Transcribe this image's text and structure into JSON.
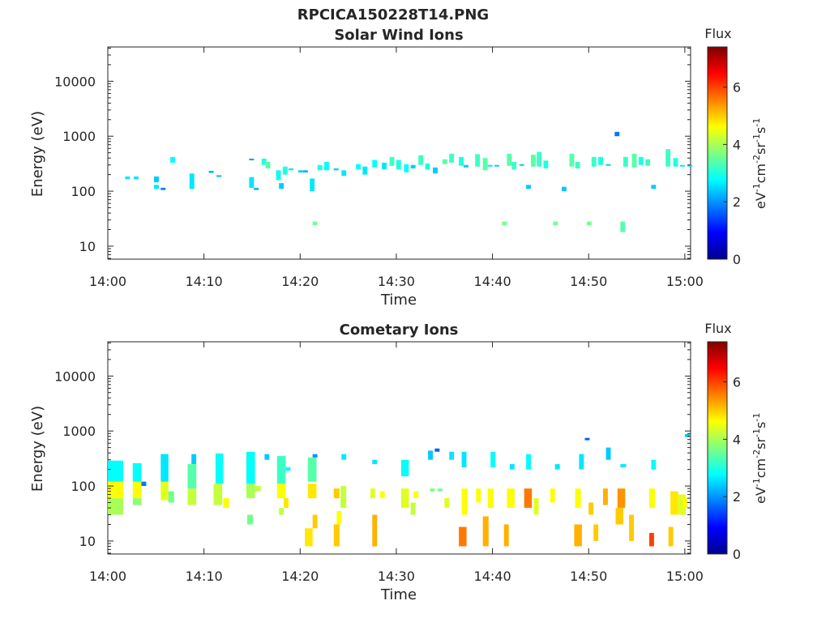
{
  "figure": {
    "title_line1": "RPCICA150228T14.PNG"
  },
  "colorbar_common": {
    "label": "Flux",
    "unit_parts": {
      "base1": "eV",
      "exp1": "-1",
      "base2": "cm",
      "exp2": "-2",
      "base3": "sr",
      "exp3": "-1",
      "base4": "s",
      "exp4": "-1"
    },
    "ticks": [
      "0",
      "2",
      "4",
      "6"
    ],
    "range": [
      0,
      7.4
    ],
    "colormap": "jet"
  },
  "chart_data": [
    {
      "type": "heatmap",
      "title": "Solar Wind Ions",
      "xlabel": "Time",
      "ylabel": "Energy (eV)",
      "x_ticks": [
        "14:00",
        "14:10",
        "14:20",
        "14:30",
        "14:40",
        "14:50",
        "15:00"
      ],
      "y_ticks": [
        "10",
        "100",
        "1000",
        "10000"
      ],
      "y_scale": "log",
      "ylim": [
        5.8,
        42000
      ],
      "x_range_minutes": [
        0,
        60.6
      ],
      "cells": [
        [
          1.8,
          0.5,
          165,
          185,
          2.6
        ],
        [
          2.7,
          0.5,
          165,
          185,
          2.6
        ],
        [
          4.8,
          0.5,
          145,
          185,
          2.4
        ],
        [
          4.8,
          0.5,
          110,
          130,
          2.6
        ],
        [
          5.5,
          0.5,
          105,
          115,
          1.8
        ],
        [
          6.5,
          0.5,
          330,
          420,
          2.8
        ],
        [
          8.5,
          0.5,
          110,
          210,
          2.6
        ],
        [
          10.5,
          0.5,
          215,
          235,
          2.2
        ],
        [
          11.3,
          0.5,
          185,
          195,
          2.2
        ],
        [
          14.7,
          0.5,
          115,
          180,
          2.6
        ],
        [
          14.7,
          0.5,
          370,
          390,
          2.0
        ],
        [
          15.2,
          0.5,
          105,
          115,
          2.2
        ],
        [
          16.0,
          0.5,
          300,
          390,
          3.0
        ],
        [
          16.4,
          0.5,
          260,
          340,
          3.4
        ],
        [
          17.5,
          0.5,
          160,
          240,
          2.8
        ],
        [
          17.8,
          0.5,
          110,
          140,
          2.4
        ],
        [
          18.2,
          0.5,
          200,
          280,
          3.0
        ],
        [
          18.8,
          0.5,
          240,
          260,
          2.6
        ],
        [
          19.8,
          0.5,
          220,
          240,
          2.4
        ],
        [
          20.3,
          0.5,
          220,
          240,
          2.2
        ],
        [
          21.0,
          0.5,
          100,
          170,
          2.6
        ],
        [
          21.3,
          0.5,
          24,
          28,
          3.6
        ],
        [
          21.8,
          0.5,
          240,
          300,
          3.0
        ],
        [
          22.5,
          0.5,
          240,
          340,
          2.8
        ],
        [
          23.5,
          0.5,
          240,
          260,
          2.4
        ],
        [
          24.3,
          0.5,
          190,
          240,
          2.6
        ],
        [
          25.8,
          0.5,
          250,
          310,
          2.8
        ],
        [
          26.5,
          0.5,
          200,
          280,
          2.6
        ],
        [
          27.5,
          0.5,
          270,
          370,
          2.8
        ],
        [
          28.5,
          0.5,
          250,
          330,
          2.6
        ],
        [
          29.3,
          0.5,
          290,
          420,
          3.2
        ],
        [
          30.0,
          0.5,
          250,
          370,
          3.0
        ],
        [
          30.8,
          0.5,
          220,
          310,
          2.8
        ],
        [
          31.5,
          0.5,
          260,
          300,
          2.4
        ],
        [
          32.3,
          0.5,
          300,
          450,
          3.2
        ],
        [
          33.0,
          0.5,
          250,
          320,
          3.0
        ],
        [
          33.8,
          0.5,
          210,
          270,
          2.4
        ],
        [
          34.8,
          0.5,
          310,
          380,
          3.4
        ],
        [
          35.5,
          0.5,
          330,
          480,
          3.2
        ],
        [
          36.5,
          0.5,
          290,
          420,
          3.0
        ],
        [
          37.0,
          0.5,
          270,
          300,
          2.4
        ],
        [
          38.2,
          0.5,
          280,
          470,
          3.2
        ],
        [
          39.0,
          0.5,
          240,
          400,
          3.4
        ],
        [
          39.5,
          0.5,
          280,
          300,
          2.6
        ],
        [
          40.2,
          0.5,
          280,
          300,
          2.4
        ],
        [
          41.0,
          0.5,
          24,
          28,
          3.6
        ],
        [
          41.5,
          0.5,
          290,
          480,
          3.4
        ],
        [
          42.0,
          0.5,
          250,
          340,
          3.2
        ],
        [
          42.8,
          0.5,
          290,
          310,
          2.4
        ],
        [
          43.5,
          0.5,
          110,
          130,
          2.4
        ],
        [
          44.0,
          0.5,
          280,
          460,
          3.4
        ],
        [
          44.6,
          0.5,
          280,
          520,
          3.2
        ],
        [
          45.3,
          0.5,
          260,
          360,
          3.0
        ],
        [
          46.3,
          0.5,
          24,
          28,
          3.6
        ],
        [
          47.2,
          0.5,
          100,
          120,
          2.4
        ],
        [
          48.0,
          0.5,
          280,
          480,
          3.4
        ],
        [
          48.6,
          0.5,
          260,
          340,
          3.2
        ],
        [
          49.8,
          0.5,
          24,
          28,
          3.6
        ],
        [
          50.3,
          0.5,
          280,
          420,
          3.2
        ],
        [
          51.0,
          0.5,
          300,
          420,
          3.0
        ],
        [
          51.8,
          0.5,
          290,
          310,
          2.4
        ],
        [
          52.7,
          0.5,
          1000,
          1200,
          1.8
        ],
        [
          53.3,
          0.5,
          18,
          28,
          3.4
        ],
        [
          53.6,
          0.5,
          280,
          420,
          3.2
        ],
        [
          54.5,
          0.5,
          270,
          480,
          3.4
        ],
        [
          55.2,
          0.5,
          300,
          420,
          3.0
        ],
        [
          55.9,
          0.5,
          290,
          380,
          3.2
        ],
        [
          56.5,
          0.5,
          110,
          130,
          2.4
        ],
        [
          58.0,
          0.5,
          280,
          580,
          3.2
        ],
        [
          58.8,
          0.5,
          280,
          400,
          3.0
        ],
        [
          59.5,
          0.5,
          280,
          300,
          2.6
        ],
        [
          60.3,
          0.5,
          280,
          300,
          2.6
        ]
      ]
    },
    {
      "type": "heatmap",
      "title": "Cometary Ions",
      "xlabel": "Time",
      "ylabel": "Energy (eV)",
      "x_ticks": [
        "14:00",
        "14:10",
        "14:20",
        "14:30",
        "14:40",
        "14:50",
        "15:00"
      ],
      "y_ticks": [
        "10",
        "100",
        "1000",
        "10000"
      ],
      "y_scale": "log",
      "ylim": [
        5.8,
        42000
      ],
      "x_range_minutes": [
        0,
        60.6
      ],
      "cells": [
        [
          0.0,
          1.6,
          30,
          60,
          4.0
        ],
        [
          0.0,
          1.6,
          60,
          120,
          4.6
        ],
        [
          0.0,
          1.6,
          120,
          290,
          2.8
        ],
        [
          2.6,
          0.9,
          45,
          60,
          3.8
        ],
        [
          2.6,
          0.9,
          60,
          120,
          4.6
        ],
        [
          2.6,
          0.9,
          120,
          260,
          2.8
        ],
        [
          3.5,
          0.5,
          100,
          120,
          1.8
        ],
        [
          5.5,
          0.8,
          55,
          120,
          4.4
        ],
        [
          5.5,
          0.8,
          120,
          380,
          2.6
        ],
        [
          6.3,
          0.6,
          50,
          80,
          3.6
        ],
        [
          8.3,
          0.9,
          45,
          90,
          4.2
        ],
        [
          8.3,
          0.9,
          90,
          250,
          3.4
        ],
        [
          8.7,
          0.5,
          250,
          380,
          2.4
        ],
        [
          11.0,
          0.9,
          45,
          110,
          4.2
        ],
        [
          11.2,
          0.8,
          110,
          390,
          2.8
        ],
        [
          12.0,
          0.6,
          40,
          60,
          4.6
        ],
        [
          14.4,
          0.9,
          60,
          110,
          4.0
        ],
        [
          14.4,
          0.9,
          110,
          420,
          2.8
        ],
        [
          14.5,
          0.6,
          20,
          30,
          3.6
        ],
        [
          15.3,
          0.6,
          80,
          100,
          4.2
        ],
        [
          16.3,
          0.5,
          300,
          380,
          2.4
        ],
        [
          17.6,
          0.9,
          60,
          110,
          4.6
        ],
        [
          17.6,
          0.9,
          110,
          350,
          3.2
        ],
        [
          17.8,
          0.5,
          30,
          40,
          4.2
        ],
        [
          18.3,
          0.5,
          40,
          60,
          4.8
        ],
        [
          18.5,
          0.5,
          190,
          220,
          2.8
        ],
        [
          20.5,
          0.8,
          8,
          17,
          4.8
        ],
        [
          20.8,
          0.9,
          60,
          110,
          4.8
        ],
        [
          20.8,
          0.9,
          120,
          330,
          3.4
        ],
        [
          21.3,
          0.5,
          17,
          30,
          5.0
        ],
        [
          21.3,
          0.5,
          330,
          380,
          2.0
        ],
        [
          23.5,
          0.6,
          8,
          20,
          5.0
        ],
        [
          23.5,
          0.6,
          60,
          90,
          5.0
        ],
        [
          23.8,
          0.5,
          20,
          35,
          4.6
        ],
        [
          24.2,
          0.6,
          40,
          100,
          4.2
        ],
        [
          24.3,
          0.5,
          300,
          380,
          2.6
        ],
        [
          27.5,
          0.5,
          8,
          30,
          5.2
        ],
        [
          27.3,
          0.5,
          60,
          90,
          4.4
        ],
        [
          27.5,
          0.5,
          250,
          300,
          2.6
        ],
        [
          28.3,
          0.5,
          60,
          80,
          4.6
        ],
        [
          30.5,
          0.8,
          40,
          90,
          4.4
        ],
        [
          30.5,
          0.8,
          150,
          300,
          2.8
        ],
        [
          31.5,
          0.5,
          30,
          50,
          4.2
        ],
        [
          31.8,
          0.5,
          60,
          80,
          4.6
        ],
        [
          33.3,
          0.5,
          300,
          440,
          2.4
        ],
        [
          33.5,
          0.5,
          80,
          90,
          3.6
        ],
        [
          34.3,
          0.5,
          80,
          90,
          3.6
        ],
        [
          34.0,
          0.5,
          420,
          480,
          1.6
        ],
        [
          35.0,
          0.5,
          40,
          60,
          4.4
        ],
        [
          35.5,
          0.5,
          300,
          420,
          2.6
        ],
        [
          36.5,
          0.8,
          8,
          18,
          5.6
        ],
        [
          36.8,
          0.6,
          30,
          90,
          4.6
        ],
        [
          36.8,
          0.5,
          220,
          420,
          2.6
        ],
        [
          38.3,
          0.5,
          50,
          90,
          4.6
        ],
        [
          39.0,
          0.6,
          8,
          28,
          5.2
        ],
        [
          39.5,
          0.6,
          40,
          90,
          4.6
        ],
        [
          39.8,
          0.5,
          220,
          420,
          2.8
        ],
        [
          41.2,
          0.5,
          8,
          20,
          5.2
        ],
        [
          41.5,
          0.8,
          40,
          90,
          4.6
        ],
        [
          41.8,
          0.5,
          200,
          250,
          2.6
        ],
        [
          43.3,
          0.8,
          40,
          90,
          5.6
        ],
        [
          43.5,
          0.5,
          200,
          380,
          2.8
        ],
        [
          44.3,
          0.5,
          30,
          60,
          4.4
        ],
        [
          46.0,
          0.5,
          50,
          90,
          4.6
        ],
        [
          46.5,
          0.5,
          200,
          250,
          2.6
        ],
        [
          48.5,
          0.8,
          8,
          20,
          5.2
        ],
        [
          48.6,
          0.6,
          40,
          90,
          4.6
        ],
        [
          49.0,
          0.5,
          200,
          380,
          2.6
        ],
        [
          49.6,
          0.5,
          680,
          750,
          1.6
        ],
        [
          50.0,
          0.5,
          30,
          50,
          5.0
        ],
        [
          50.5,
          0.5,
          10,
          20,
          5.0
        ],
        [
          51.5,
          0.5,
          45,
          90,
          5.2
        ],
        [
          51.8,
          0.5,
          300,
          500,
          2.4
        ],
        [
          52.8,
          0.8,
          20,
          40,
          5.0
        ],
        [
          53.0,
          0.8,
          40,
          90,
          5.4
        ],
        [
          53.3,
          0.6,
          220,
          250,
          2.6
        ],
        [
          54.2,
          0.5,
          10,
          30,
          5.0
        ],
        [
          56.3,
          0.5,
          8,
          14,
          6.0
        ],
        [
          56.3,
          0.6,
          40,
          90,
          4.6
        ],
        [
          56.5,
          0.5,
          200,
          300,
          2.8
        ],
        [
          58.3,
          0.5,
          8,
          18,
          5.0
        ],
        [
          58.5,
          0.8,
          30,
          80,
          4.8
        ],
        [
          59.3,
          0.8,
          30,
          70,
          4.4
        ],
        [
          59.8,
          0.5,
          40,
          60,
          4.6
        ],
        [
          60.0,
          0.5,
          780,
          880,
          2.4
        ]
      ]
    }
  ]
}
